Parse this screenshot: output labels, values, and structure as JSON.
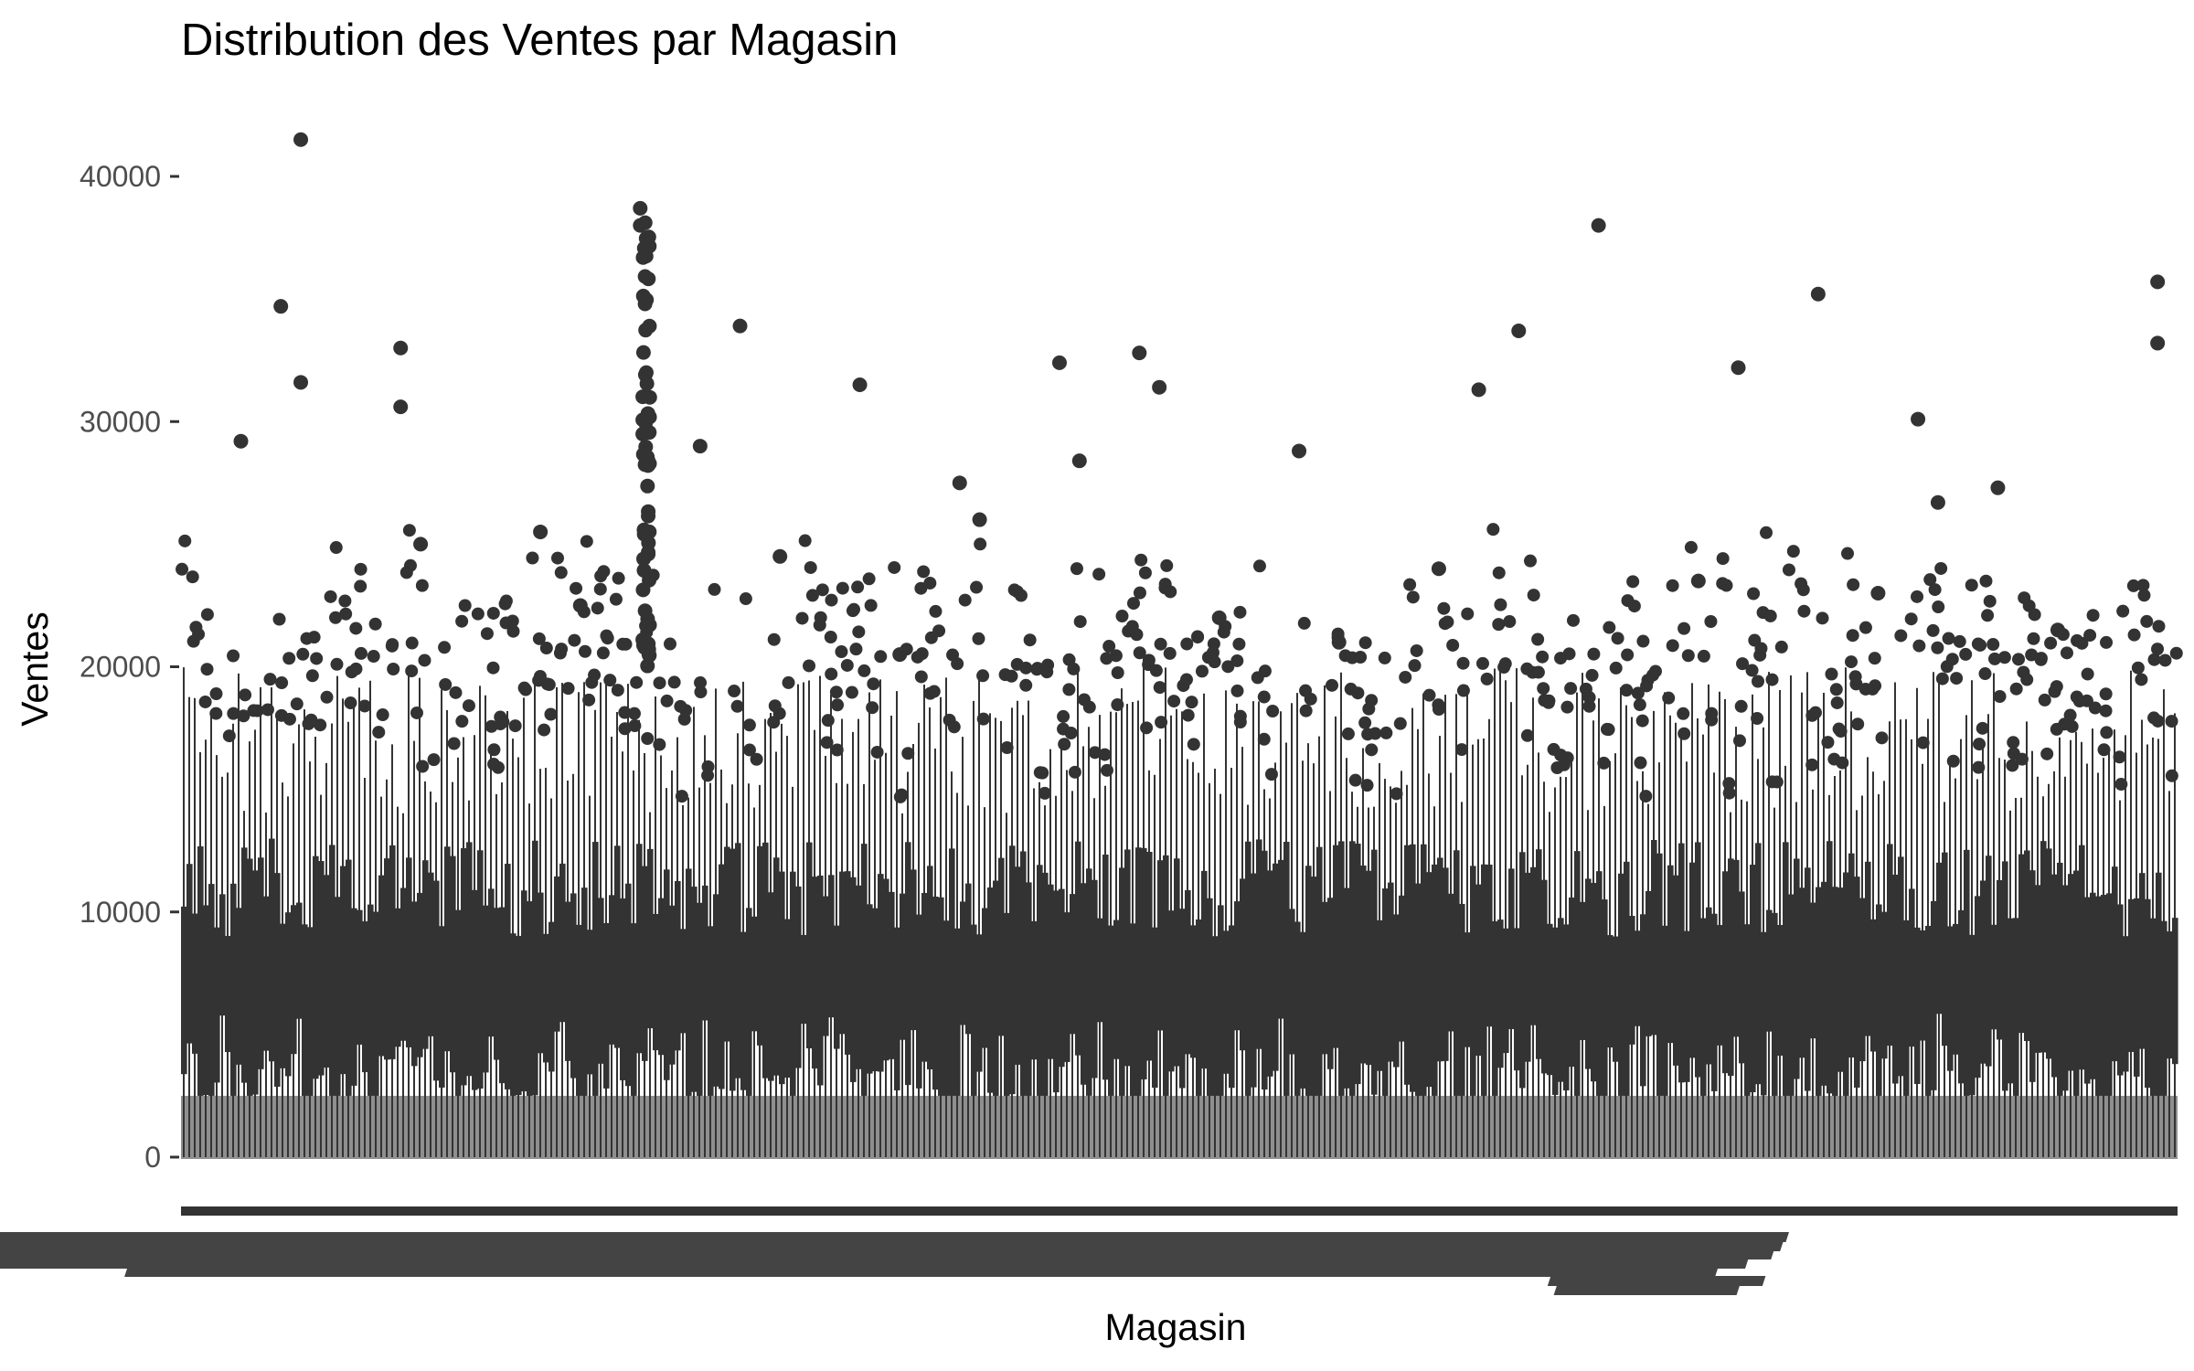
{
  "chart_data": {
    "type": "boxplot",
    "title": "Distribution des Ventes par Magasin",
    "xlabel": "Magasin",
    "ylabel": "Ventes",
    "ylim": [
      0,
      42000
    ],
    "yticks": [
      0,
      10000,
      20000,
      30000,
      40000
    ],
    "grid": false,
    "legend": "none",
    "box_color": "#333333",
    "n_categories": 1115,
    "summary": {
      "median_range": [
        5000,
        8000
      ],
      "q3_range": [
        9000,
        13000
      ],
      "whisker_upper_range": [
        14000,
        20000
      ]
    },
    "notable_outliers": [
      41500,
      38700,
      38000,
      38000,
      35700,
      35200,
      34700,
      33900,
      33700,
      33200,
      33000,
      32800,
      32400,
      32200,
      31600,
      31500,
      31400,
      31300,
      30600,
      30100,
      29200,
      29000,
      28800,
      28400,
      27500,
      27300,
      26700,
      26000,
      25500,
      25000,
      24500,
      24000,
      23500,
      23000,
      22500,
      22000,
      21500,
      21000,
      20500
    ]
  }
}
